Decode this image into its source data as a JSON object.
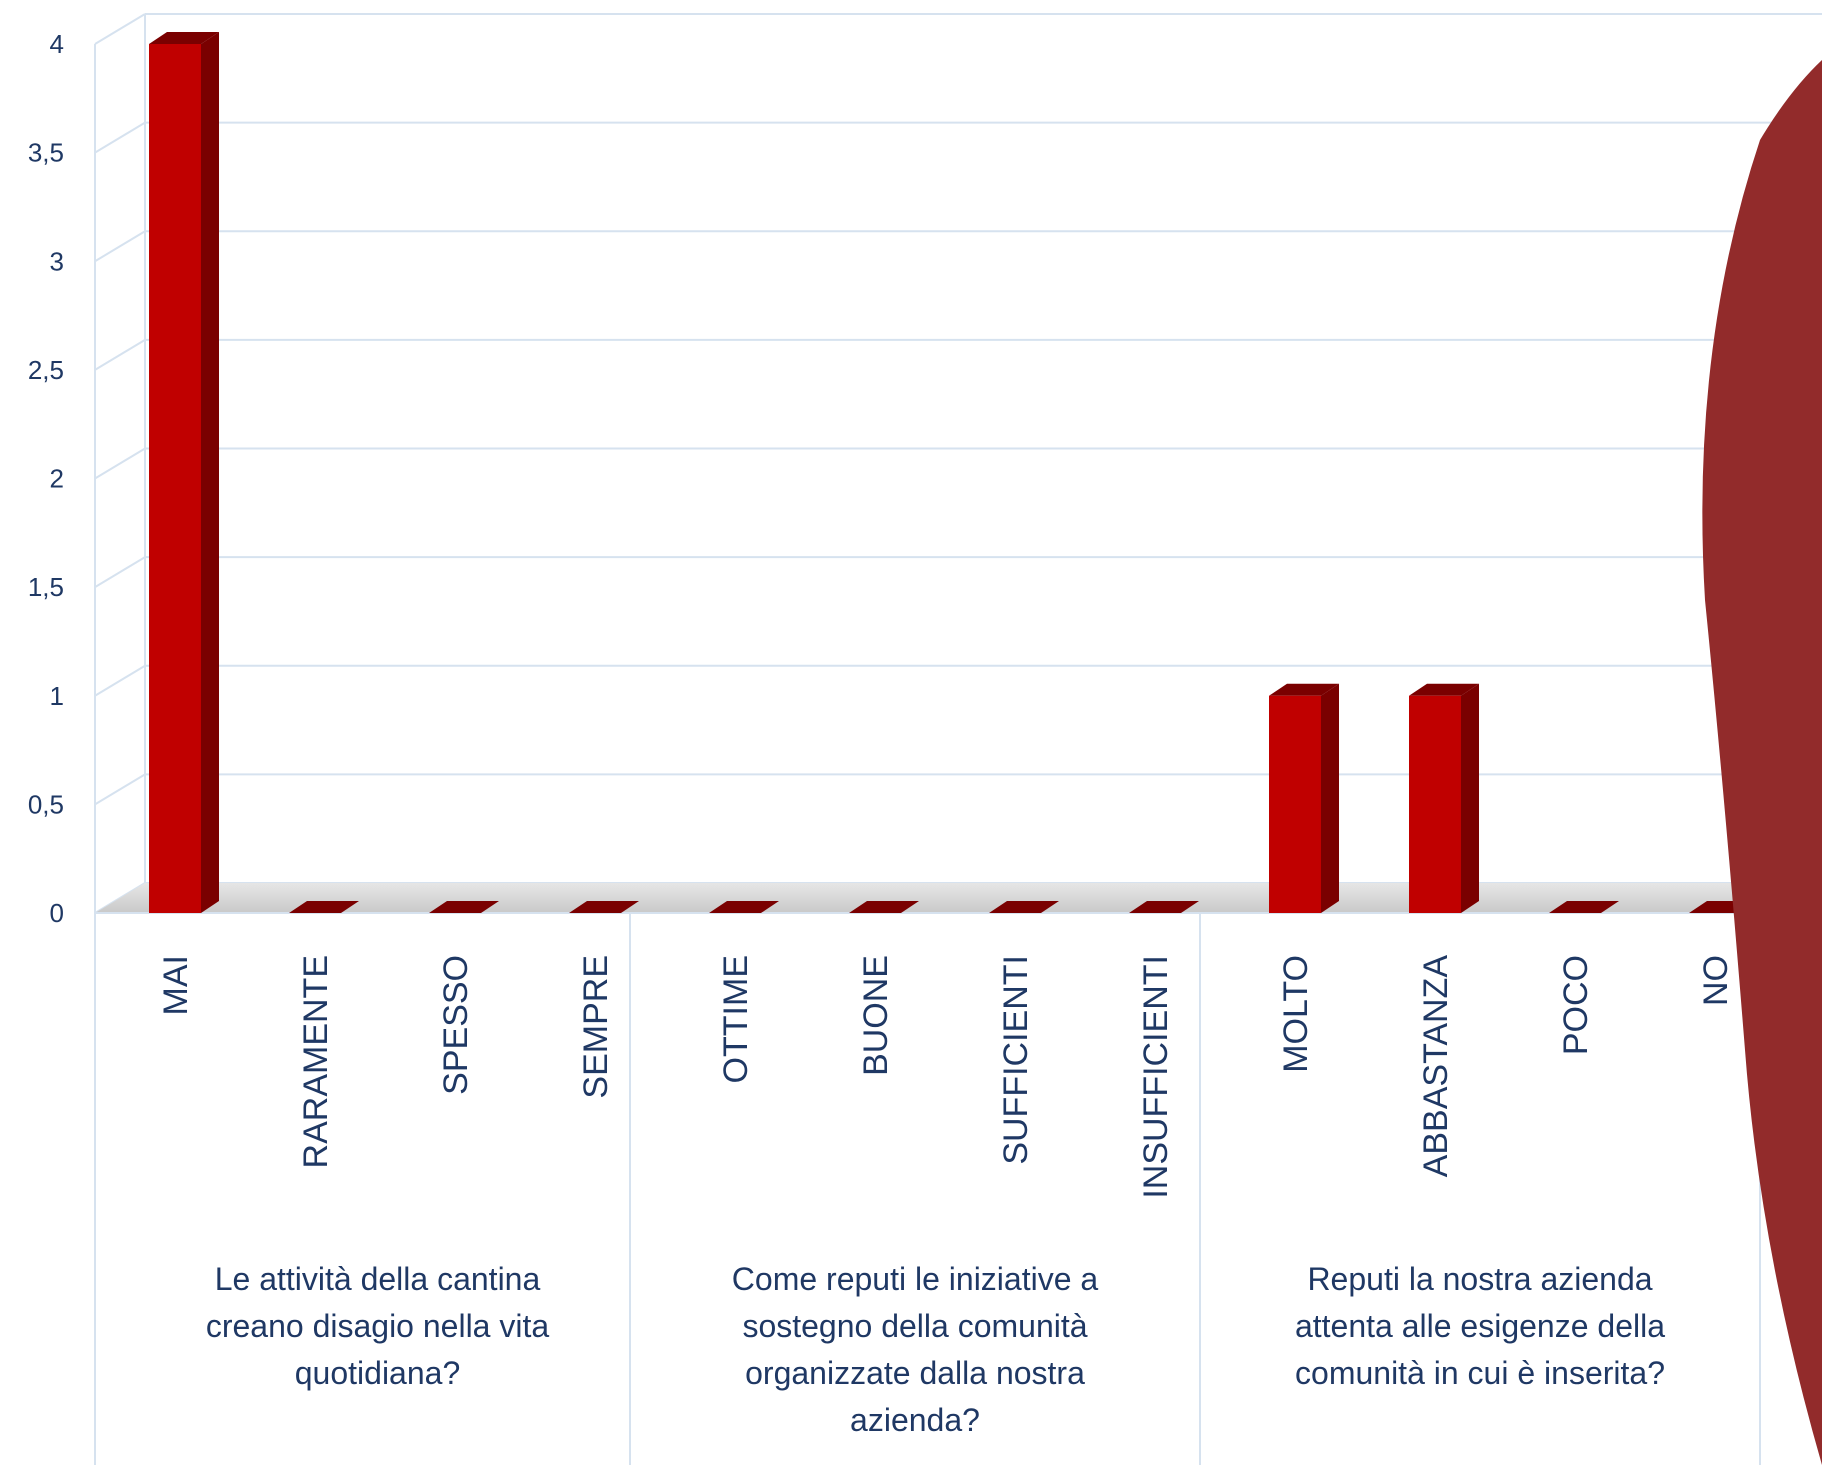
{
  "chart_data": {
    "type": "bar",
    "title": "",
    "xlabel": "",
    "ylabel": "",
    "ylim": [
      0,
      4
    ],
    "yticks": [
      "0",
      "0,5",
      "1",
      "1,5",
      "2",
      "2,5",
      "3",
      "3,5",
      "4"
    ],
    "grid": true,
    "legend": "none",
    "bar_color": "#c00000",
    "bar_dark_color": "#7a0000",
    "accent_shape_color": "#922b2b",
    "categories": [
      "MAI",
      "RARAMENTE",
      "SPESSO",
      "SEMPRE",
      "OTTIME",
      "BUONE",
      "SUFFICIENTI",
      "INSUFFICIENTI",
      "MOLTO",
      "ABBASTANZA",
      "POCO",
      "NO"
    ],
    "values": [
      4,
      0,
      0,
      0,
      0,
      0,
      0,
      0,
      1,
      1,
      0,
      0
    ],
    "groups": [
      {
        "label_lines": [
          "Le attività della cantina",
          "creano disagio nella vita",
          "quotidiana?"
        ],
        "span": [
          0,
          3
        ]
      },
      {
        "label_lines": [
          "Come reputi le iniziative a",
          "sostegno della comunità",
          "organizzate dalla nostra",
          "azienda?"
        ],
        "span": [
          4,
          7
        ]
      },
      {
        "label_lines": [
          "Reputi la nostra azienda",
          "attenta alle esigenze della",
          "comunità in cui è inserita?"
        ],
        "span": [
          8,
          11
        ]
      }
    ]
  }
}
